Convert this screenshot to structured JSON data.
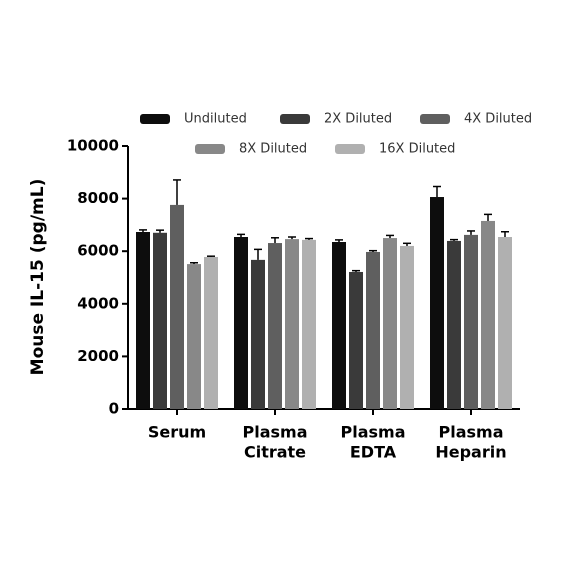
{
  "chart_data": {
    "type": "bar",
    "y_label": "Mouse IL-15 (pg/mL)",
    "categories": [
      [
        "Serum"
      ],
      [
        "Plasma",
        "Citrate"
      ],
      [
        "Plasma",
        "EDTA"
      ],
      [
        "Plasma",
        "Heparin"
      ]
    ],
    "series": [
      {
        "name": "Undiluted",
        "color": "#0d0d0d",
        "values": [
          6730,
          6540,
          6350,
          8060
        ],
        "errors": [
          80,
          100,
          80,
          400
        ]
      },
      {
        "name": "2X Diluted",
        "color": "#3a3a3a",
        "values": [
          6700,
          5670,
          5210,
          6390
        ],
        "errors": [
          100,
          400,
          50,
          50
        ]
      },
      {
        "name": "4X Diluted",
        "color": "#5f5f5f",
        "values": [
          7760,
          6310,
          5970,
          6620
        ],
        "errors": [
          950,
          200,
          50,
          150
        ]
      },
      {
        "name": "8X Diluted",
        "color": "#888888",
        "values": [
          5510,
          6460,
          6500,
          7150
        ],
        "errors": [
          50,
          80,
          100,
          250
        ]
      },
      {
        "name": "16X Diluted",
        "color": "#b0b0b0",
        "values": [
          5780,
          6430,
          6200,
          6540
        ],
        "errors": [
          30,
          50,
          100,
          200
        ]
      }
    ],
    "ylim": [
      0,
      10000
    ],
    "yticks": [
      0,
      2000,
      4000,
      6000,
      8000,
      10000
    ],
    "legend": "top"
  }
}
